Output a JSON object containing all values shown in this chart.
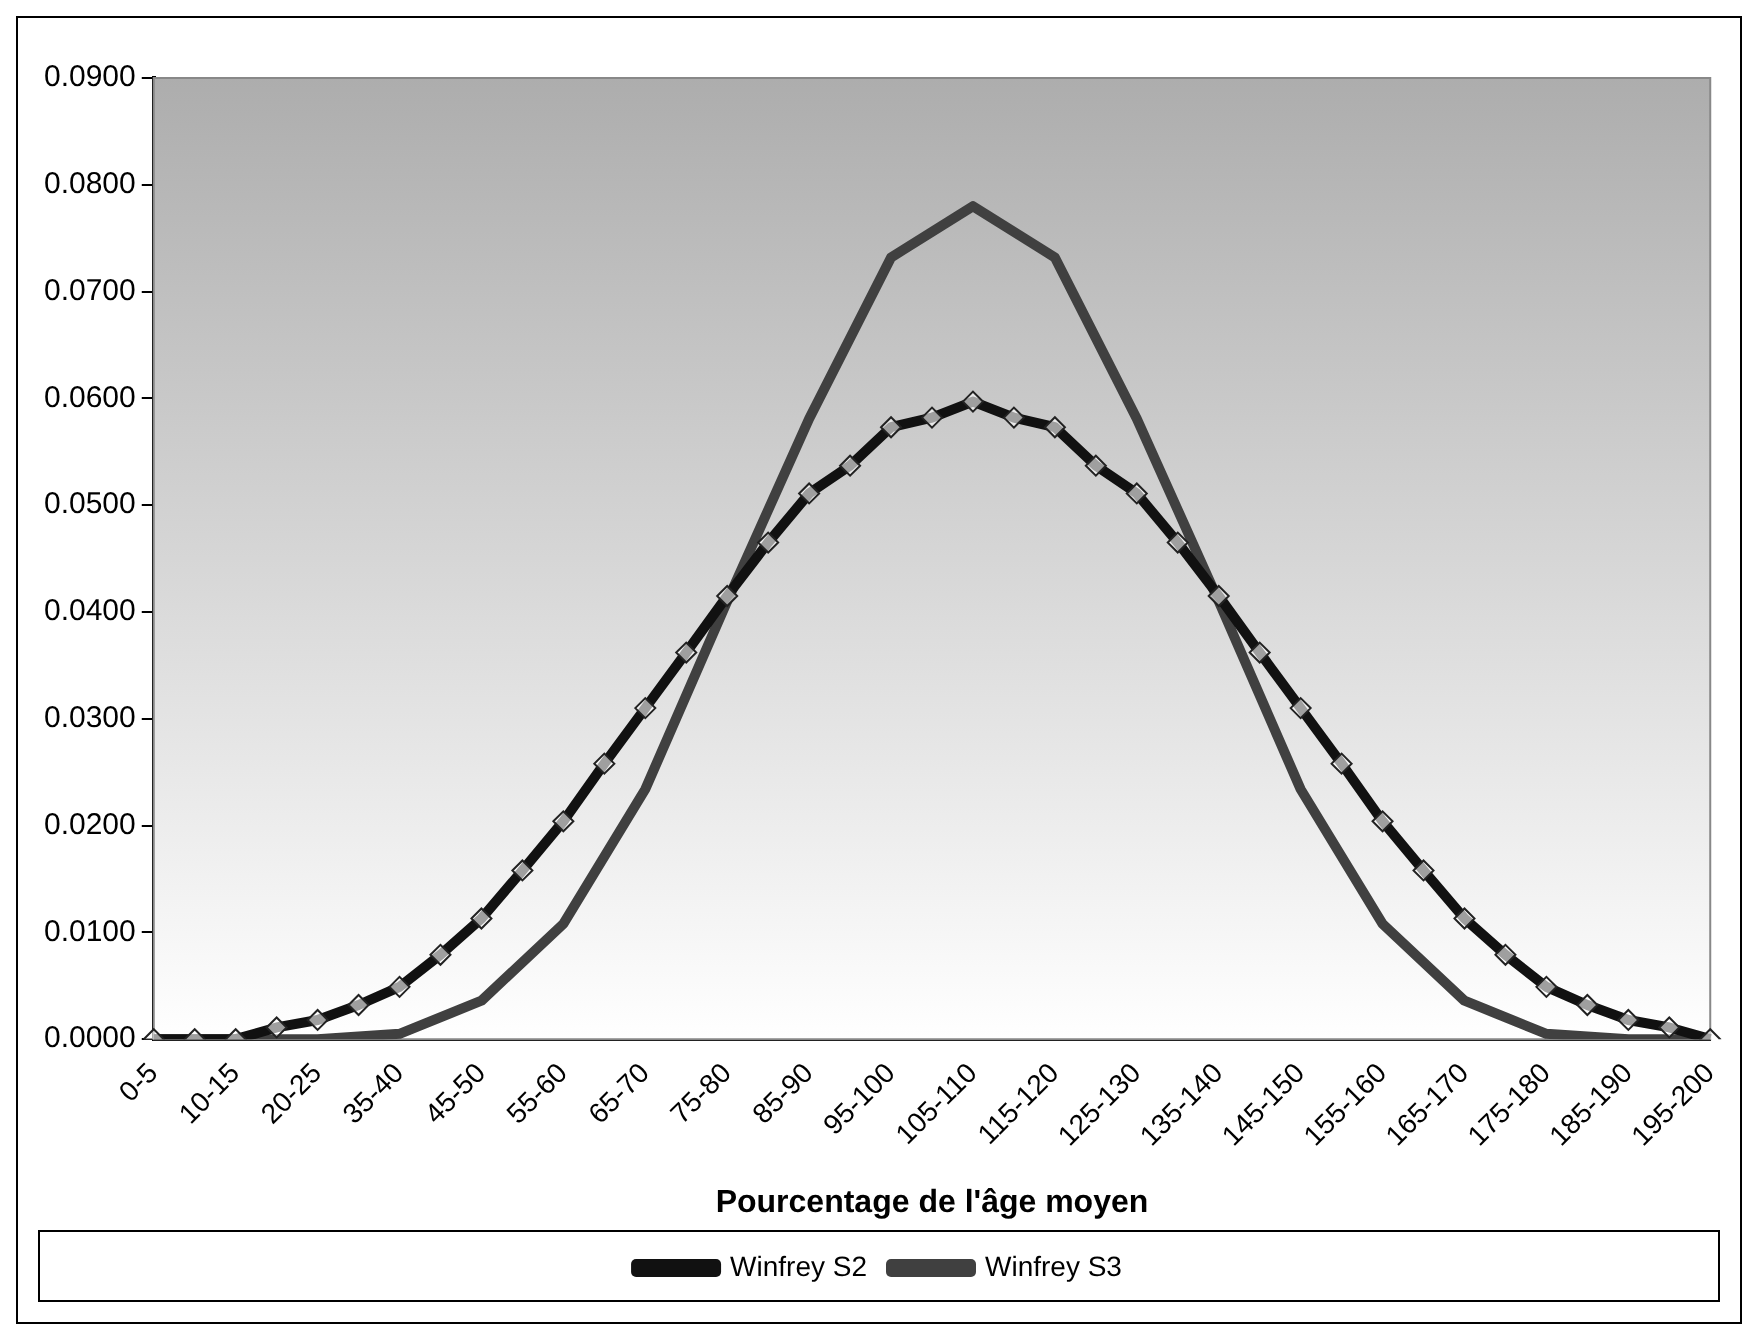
{
  "chart_data": {
    "type": "line",
    "xlabel": "Pourcentage de l'âge moyen",
    "categories": [
      "0-5",
      null,
      "10-15",
      null,
      "20-25",
      null,
      "35-40",
      null,
      "45-50",
      null,
      "55-60",
      null,
      "65-70",
      null,
      "75-80",
      null,
      "85-90",
      null,
      "95-100",
      null,
      "105-110",
      null,
      "115-120",
      null,
      "125-130",
      null,
      "135-140",
      null,
      "145-150",
      null,
      "155-160",
      null,
      "165-170",
      null,
      "175-180",
      null,
      "185-190",
      null,
      "195-200"
    ],
    "series": [
      {
        "name": "Winfrey S2",
        "color": "#111111",
        "marker": "diamond",
        "values": [
          0,
          0,
          0,
          0.0011,
          0.0018,
          0.0032,
          0.0049,
          0.0079,
          0.0113,
          0.0158,
          0.0204,
          0.0258,
          0.031,
          0.0362,
          0.0415,
          0.0465,
          0.0511,
          0.0537,
          0.0573,
          0.0582,
          0.0597,
          0.0582,
          0.0573,
          0.0537,
          0.0511,
          0.0465,
          0.0415,
          0.0362,
          0.031,
          0.0258,
          0.0204,
          0.0158,
          0.0113,
          0.0079,
          0.0049,
          0.0032,
          0.0018,
          0.0011,
          0
        ]
      },
      {
        "name": "Winfrey S3",
        "color": "#404040",
        "marker": "none",
        "values": [
          0,
          null,
          0,
          null,
          0,
          null,
          0.0005,
          null,
          0.0036,
          null,
          0.0108,
          null,
          0.0234,
          null,
          0.041,
          null,
          0.0581,
          null,
          0.0732,
          null,
          0.078,
          null,
          0.0732,
          null,
          0.0581,
          null,
          0.041,
          null,
          0.0234,
          null,
          0.0108,
          null,
          0.0036,
          null,
          0.0005,
          null,
          0,
          null,
          0
        ]
      }
    ],
    "ylim": [
      0,
      0.09
    ],
    "yticks": [
      {
        "value": 0,
        "label": "0.0000"
      },
      {
        "value": 0.01,
        "label": "0.0100"
      },
      {
        "value": 0.02,
        "label": "0.0200"
      },
      {
        "value": 0.03,
        "label": "0.0300"
      },
      {
        "value": 0.04,
        "label": "0.0400"
      },
      {
        "value": 0.05,
        "label": "0.0500"
      },
      {
        "value": 0.06,
        "label": "0.0600"
      },
      {
        "value": 0.07,
        "label": "0.0700"
      },
      {
        "value": 0.08,
        "label": "0.0800"
      },
      {
        "value": 0.09,
        "label": "0.0900"
      }
    ],
    "grid": false,
    "legend": "bottom",
    "line_style": "solid"
  }
}
